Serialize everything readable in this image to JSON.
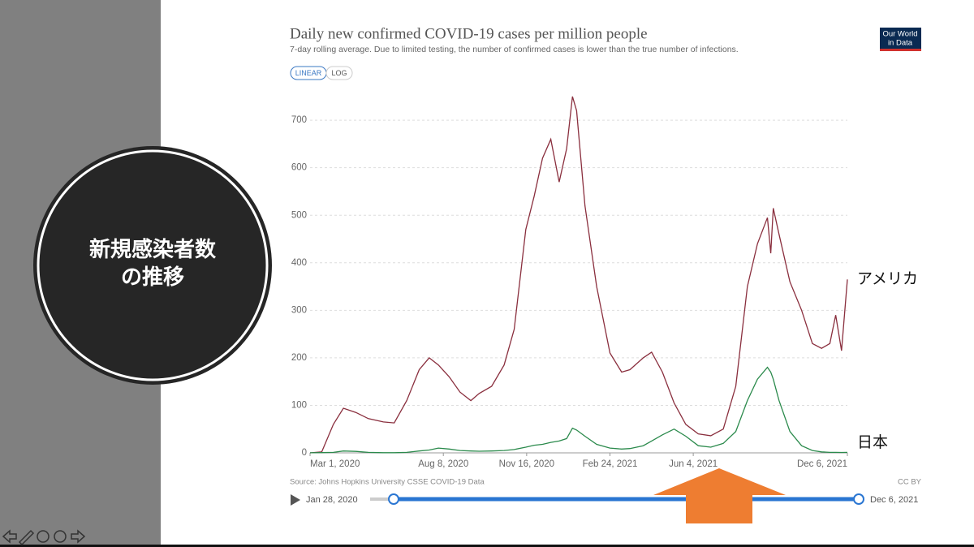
{
  "slide": {
    "heading": [
      "新規感染者数",
      "の推移"
    ]
  },
  "logo": [
    "Our World",
    "in Data"
  ],
  "chart_data": {
    "type": "line",
    "title": "Daily new confirmed COVID-19 cases per million people",
    "subtitle": "7-day rolling average. Due to limited testing, the number of confirmed cases is lower than the true number of infections.",
    "buttons": [
      "LINEAR",
      "LOG"
    ],
    "source": "Source: Johns Hopkins University CSSE COVID-19 Data",
    "license": "CC BY",
    "timeline": {
      "start": "Jan 28, 2020",
      "end": "Dec 6, 2021"
    },
    "x": [
      "2020-03-01",
      "2020-03-15",
      "2020-03-29",
      "2020-04-10",
      "2020-04-25",
      "2020-05-10",
      "2020-05-28",
      "2020-06-10",
      "2020-06-25",
      "2020-07-10",
      "2020-07-22",
      "2020-08-02",
      "2020-08-15",
      "2020-08-28",
      "2020-09-10",
      "2020-09-20",
      "2020-10-05",
      "2020-10-20",
      "2020-11-01",
      "2020-11-15",
      "2020-11-25",
      "2020-12-05",
      "2020-12-15",
      "2020-12-25",
      "2021-01-03",
      "2021-01-10",
      "2021-01-15",
      "2021-01-25",
      "2021-02-08",
      "2021-02-24",
      "2021-03-10",
      "2021-03-20",
      "2021-04-05",
      "2021-04-15",
      "2021-04-28",
      "2021-05-12",
      "2021-05-26",
      "2021-06-10",
      "2021-06-25",
      "2021-07-10",
      "2021-07-25",
      "2021-08-08",
      "2021-08-20",
      "2021-09-01",
      "2021-09-05",
      "2021-09-08",
      "2021-09-15",
      "2021-09-28",
      "2021-10-12",
      "2021-10-25",
      "2021-11-05",
      "2021-11-15",
      "2021-11-22",
      "2021-11-29",
      "2021-12-06"
    ],
    "series": [
      {
        "name": "アメリカ",
        "color": "#8a2f3e",
        "values": [
          0,
          2,
          60,
          94,
          85,
          72,
          65,
          63,
          110,
          175,
          200,
          185,
          160,
          128,
          110,
          125,
          140,
          185,
          260,
          470,
          540,
          620,
          660,
          570,
          640,
          750,
          720,
          520,
          350,
          210,
          170,
          175,
          200,
          212,
          170,
          105,
          60,
          40,
          36,
          50,
          140,
          350,
          440,
          495,
          420,
          515,
          460,
          360,
          300,
          230,
          220,
          230,
          290,
          215,
          365
        ]
      },
      {
        "name": "日本",
        "color": "#2b8a4c",
        "values": [
          0.2,
          0.5,
          1,
          4,
          3,
          1,
          0.3,
          0.4,
          1,
          4,
          6,
          10,
          8,
          5,
          4,
          3.5,
          4,
          5,
          7,
          12,
          16,
          18,
          22,
          25,
          30,
          52,
          48,
          35,
          18,
          10,
          8,
          9,
          15,
          25,
          38,
          50,
          35,
          15,
          12,
          20,
          45,
          110,
          155,
          180,
          170,
          155,
          110,
          45,
          15,
          5,
          2,
          1,
          1,
          0.8,
          1
        ]
      }
    ],
    "xlim": [
      "2020-03-01",
      "2021-12-06"
    ],
    "xticks": [
      {
        "value": "2020-03-01",
        "label": "Mar 1, 2020"
      },
      {
        "value": "2020-08-08",
        "label": "Aug 8, 2020"
      },
      {
        "value": "2020-11-16",
        "label": "Nov 16, 2020"
      },
      {
        "value": "2021-02-24",
        "label": "Feb 24, 2021"
      },
      {
        "value": "2021-06-04",
        "label": "Jun 4, 2021"
      },
      {
        "value": "2021-12-06",
        "label": "Dec 6, 2021"
      }
    ],
    "ylim": [
      0,
      760
    ],
    "yticks": [
      0,
      100,
      200,
      300,
      400,
      500,
      600,
      700
    ],
    "grid": true
  }
}
